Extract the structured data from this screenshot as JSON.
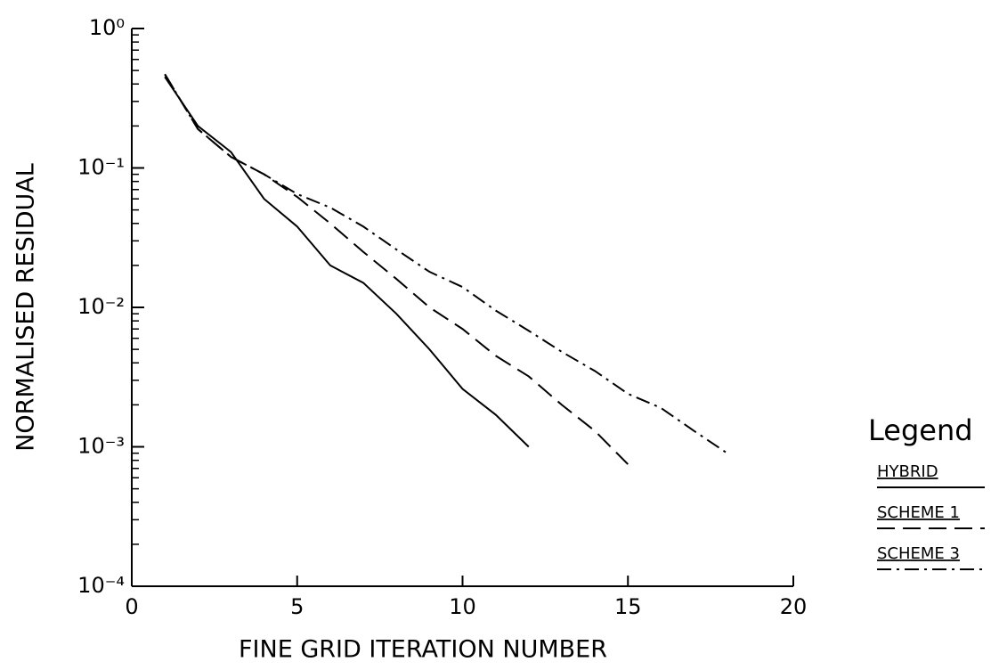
{
  "chart_data": {
    "type": "line",
    "x_label": "FINE GRID ITERATION NUMBER",
    "y_label": "NORMALISED RESIDUAL",
    "legend_title": "Legend",
    "log_y": true,
    "xlim": [
      0,
      20
    ],
    "xticks": [
      0,
      5,
      10,
      15,
      20
    ],
    "ylim": [
      0.0001,
      1
    ],
    "yticks": [
      {
        "value": 0.0001,
        "label": "10⁻⁴"
      },
      {
        "value": 0.001,
        "label": "10⁻³"
      },
      {
        "value": 0.01,
        "label": "10⁻²"
      },
      {
        "value": 0.1,
        "label": "10⁻¹"
      },
      {
        "value": 1,
        "label": "10⁰"
      }
    ],
    "legend": "right",
    "series": [
      {
        "name": "HYBRID",
        "color": "#000000",
        "dash": "solid",
        "x": [
          1,
          2,
          3,
          4,
          5,
          6,
          7,
          8,
          9,
          10,
          11,
          12
        ],
        "values": [
          0.45,
          0.2,
          0.13,
          0.06,
          0.038,
          0.02,
          0.015,
          0.009,
          0.005,
          0.0026,
          0.0017,
          0.001
        ]
      },
      {
        "name": "SCHEME 1",
        "color": "#000000",
        "dash": "dashed",
        "x": [
          1,
          2,
          3,
          4,
          5,
          6,
          7,
          8,
          9,
          10,
          11,
          12,
          13,
          14,
          15
        ],
        "values": [
          0.47,
          0.19,
          0.12,
          0.09,
          0.062,
          0.04,
          0.025,
          0.016,
          0.01,
          0.007,
          0.0045,
          0.0032,
          0.002,
          0.0013,
          0.00075
        ]
      },
      {
        "name": "SCHEME 3",
        "color": "#000000",
        "dash": "dashdot",
        "x": [
          1,
          2,
          3,
          4,
          5,
          6,
          7,
          8,
          9,
          10,
          11,
          12,
          13,
          14,
          15,
          16,
          17,
          18
        ],
        "values": [
          0.47,
          0.19,
          0.12,
          0.09,
          0.065,
          0.052,
          0.038,
          0.026,
          0.018,
          0.014,
          0.0095,
          0.0068,
          0.0048,
          0.0035,
          0.0024,
          0.0019,
          0.0013,
          0.0009
        ]
      }
    ]
  }
}
